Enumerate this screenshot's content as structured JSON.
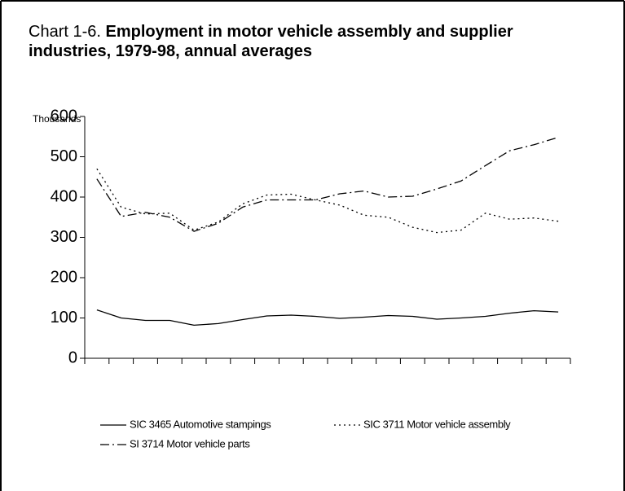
{
  "chart_data": {
    "type": "line",
    "title_number": "Chart 1-6.",
    "title": "Employment in motor vehicle assembly and supplier industries, 1979-98, annual averages",
    "y_label": "Thousands",
    "categories": [
      null,
      null,
      null,
      null,
      null,
      null,
      null,
      null,
      null,
      null,
      null,
      null,
      null,
      null,
      null,
      null,
      null,
      null,
      null,
      null
    ],
    "series": [
      {
        "name": "SIC 3465 Automotive stampings",
        "color": "#000000",
        "dash": "solid",
        "values": [
          120,
          100,
          94,
          94,
          82,
          86,
          96,
          105,
          107,
          104,
          99,
          102,
          106,
          104,
          97,
          100,
          104,
          112,
          118,
          115
        ]
      },
      {
        "name": "SIC 3711 Motor vehicle assembly",
        "color": "#000000",
        "dash": "dotted",
        "values": [
          470,
          375,
          358,
          360,
          318,
          338,
          383,
          405,
          407,
          393,
          380,
          355,
          350,
          325,
          312,
          318,
          360,
          345,
          348,
          340
        ]
      },
      {
        "name": "SI 3714 Motor vehicle parts",
        "color": "#000000",
        "dash": "dash-dot",
        "values": [
          445,
          352,
          362,
          350,
          315,
          335,
          375,
          393,
          393,
          393,
          408,
          415,
          400,
          402,
          420,
          440,
          478,
          515,
          530,
          548
        ]
      }
    ],
    "ylim": [
      0,
      600
    ],
    "yticks": [
      0,
      100,
      200,
      300,
      400,
      500,
      600
    ],
    "grid": false,
    "legend": "bottom"
  }
}
